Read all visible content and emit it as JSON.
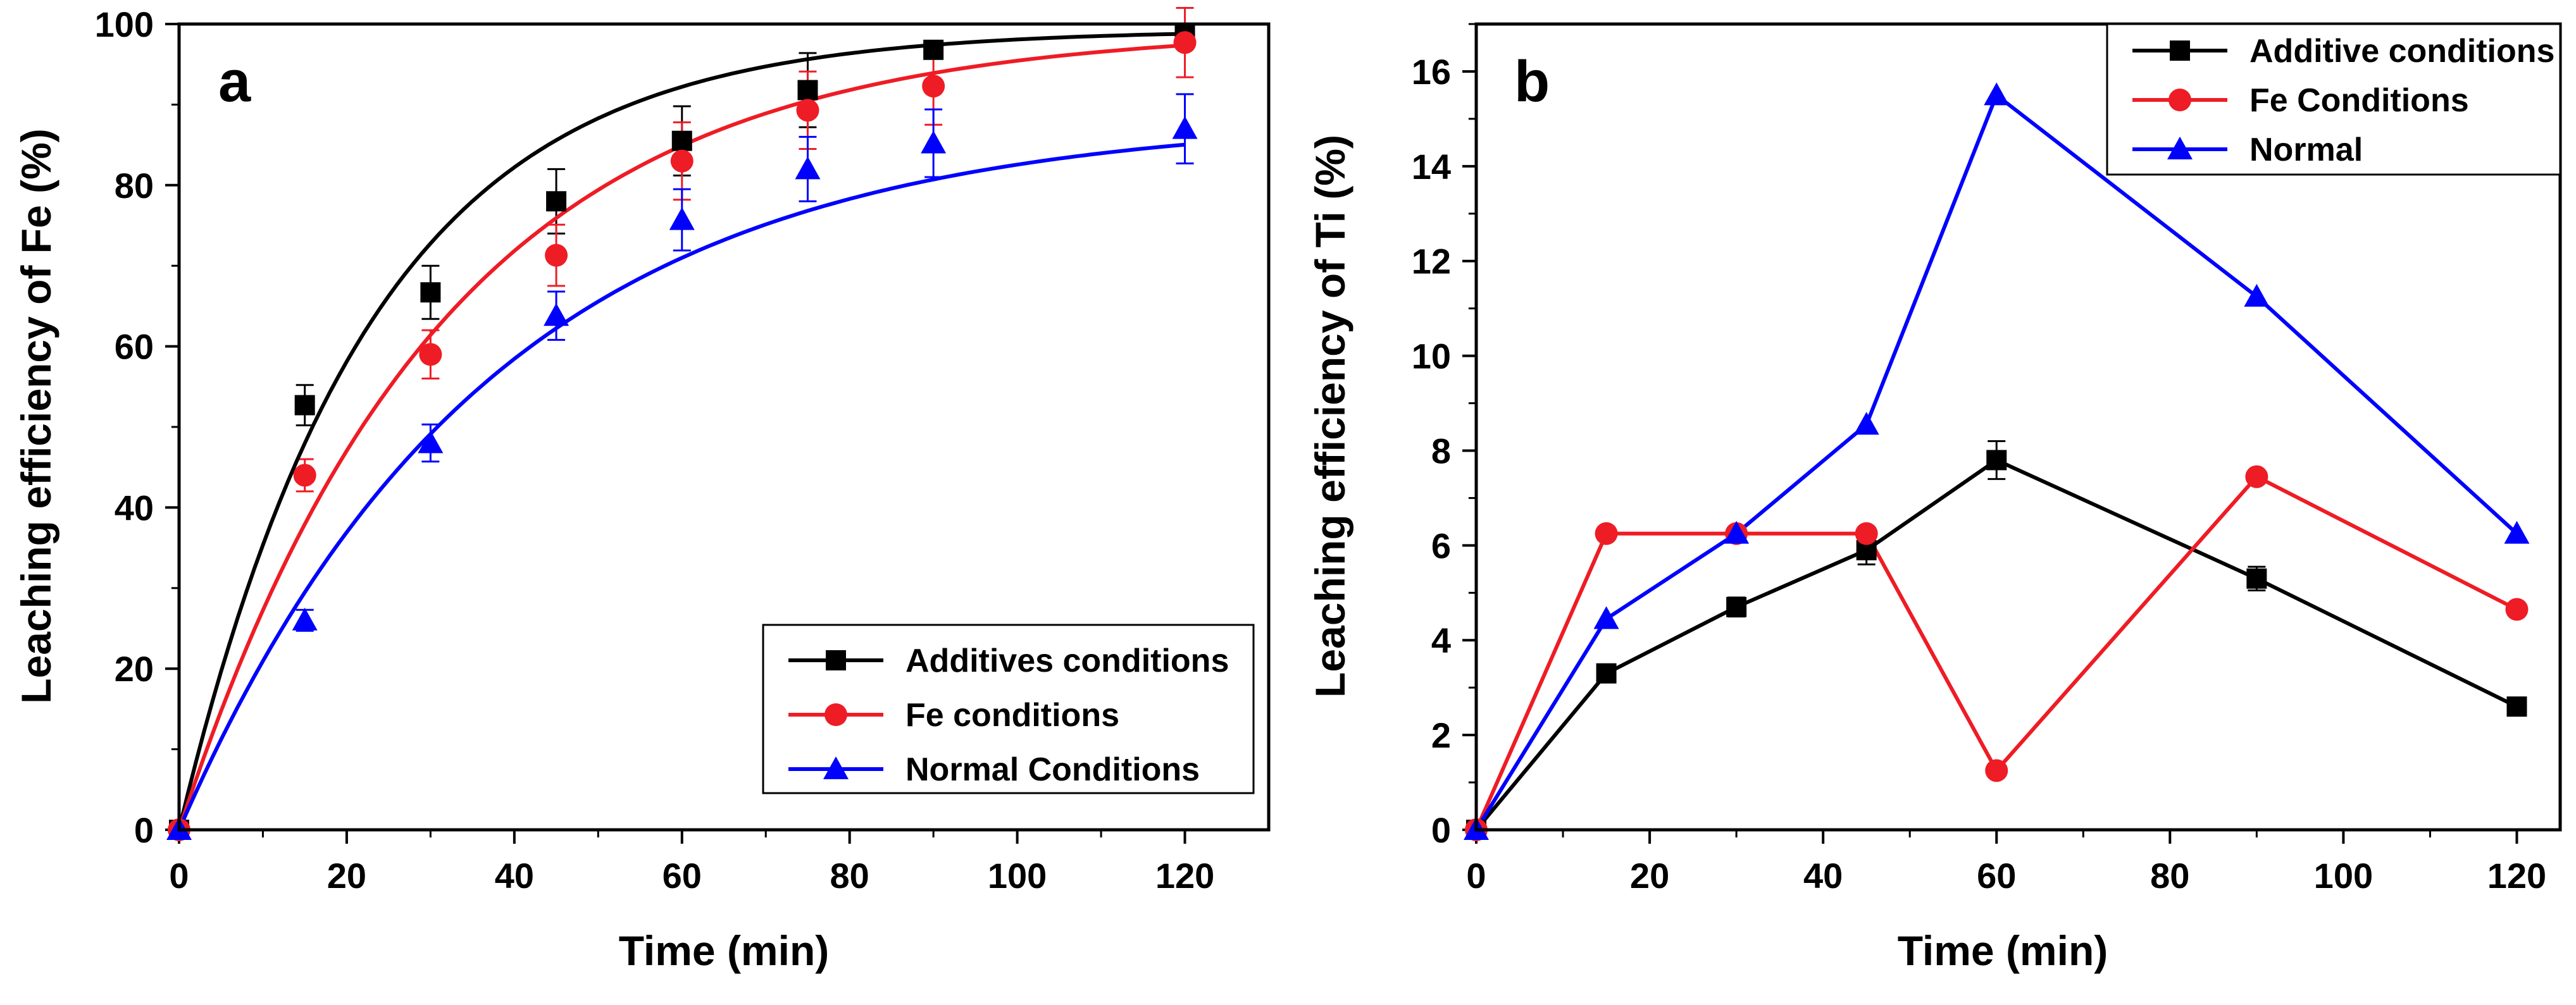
{
  "chart_data": [
    {
      "type": "line",
      "panel_label": "a",
      "xlabel": "Time (min)",
      "ylabel": "Leaching efficiency of Fe (%)",
      "xlim": [
        0,
        130
      ],
      "ylim": [
        0,
        100
      ],
      "xticks": [
        "0",
        "20",
        "40",
        "60",
        "80",
        "100",
        "120"
      ],
      "yticks": [
        "0",
        "20",
        "40",
        "60",
        "80",
        "100"
      ],
      "legend_position": "bottom-right",
      "series": [
        {
          "name": "Additives conditions",
          "color": "#000000",
          "marker": "square",
          "x": [
            0,
            15,
            30,
            45,
            60,
            75,
            90,
            120
          ],
          "y": [
            0,
            52.7,
            66.7,
            78,
            85.5,
            91.8,
            96.8,
            98.8
          ],
          "yerr": [
            0,
            2.5,
            3.3,
            4,
            4.3,
            4.6,
            0,
            0
          ],
          "fit": {
            "a": 99.3,
            "k": 0.044
          }
        },
        {
          "name": "Fe conditions",
          "color": "#ee1c25",
          "marker": "circle",
          "x": [
            0,
            15,
            30,
            45,
            60,
            75,
            90,
            120
          ],
          "y": [
            0,
            44,
            59,
            71.3,
            83,
            89.3,
            92.3,
            97.7
          ],
          "yerr": [
            0,
            2,
            3,
            3.8,
            4.8,
            4.8,
            4.8,
            4.3
          ],
          "fit": {
            "a": 99.5,
            "k": 0.032
          }
        },
        {
          "name": "Normal Conditions",
          "color": "#0000ff",
          "marker": "triangle",
          "x": [
            0,
            15,
            30,
            45,
            60,
            75,
            90,
            120
          ],
          "y": [
            0,
            26,
            48,
            63.8,
            75.7,
            82,
            85.2,
            87
          ],
          "yerr": [
            0,
            1.3,
            2.3,
            3,
            3.8,
            4,
            4.2,
            4.3
          ],
          "fit": {
            "a": 88.5,
            "k": 0.027
          }
        }
      ]
    },
    {
      "type": "line",
      "panel_label": "b",
      "xlabel": "Time (min)",
      "ylabel": "Leaching efficiency of Ti (%)",
      "xlim": [
        0,
        125
      ],
      "ylim": [
        0,
        17
      ],
      "xticks": [
        "0",
        "20",
        "40",
        "60",
        "80",
        "100",
        "120"
      ],
      "yticks": [
        "0",
        "2",
        "4",
        "6",
        "8",
        "10",
        "12",
        "14",
        "16"
      ],
      "legend_position": "top-right",
      "series": [
        {
          "name": "Additive conditions",
          "color": "#000000",
          "marker": "square",
          "x": [
            0,
            15,
            30,
            45,
            60,
            90,
            120
          ],
          "y": [
            0,
            3.3,
            4.7,
            5.9,
            7.8,
            5.3,
            2.6
          ],
          "yerr": [
            0,
            0,
            0.2,
            0.3,
            0.4,
            0.25,
            0
          ]
        },
        {
          "name": "Fe Conditions",
          "color": "#ee1c25",
          "marker": "circle",
          "x": [
            0,
            15,
            30,
            45,
            60,
            90,
            120
          ],
          "y": [
            0,
            6.25,
            6.25,
            6.25,
            1.25,
            7.45,
            4.65
          ],
          "yerr": [
            0,
            0,
            0,
            0,
            0,
            0,
            0
          ]
        },
        {
          "name": "Normal",
          "color": "#0000ff",
          "marker": "triangle",
          "x": [
            0,
            15,
            30,
            45,
            60,
            90,
            120
          ],
          "y": [
            0,
            4.45,
            6.25,
            8.55,
            15.5,
            11.25,
            6.25
          ],
          "yerr": [
            0,
            0,
            0,
            0,
            0,
            0,
            0
          ]
        }
      ]
    }
  ]
}
